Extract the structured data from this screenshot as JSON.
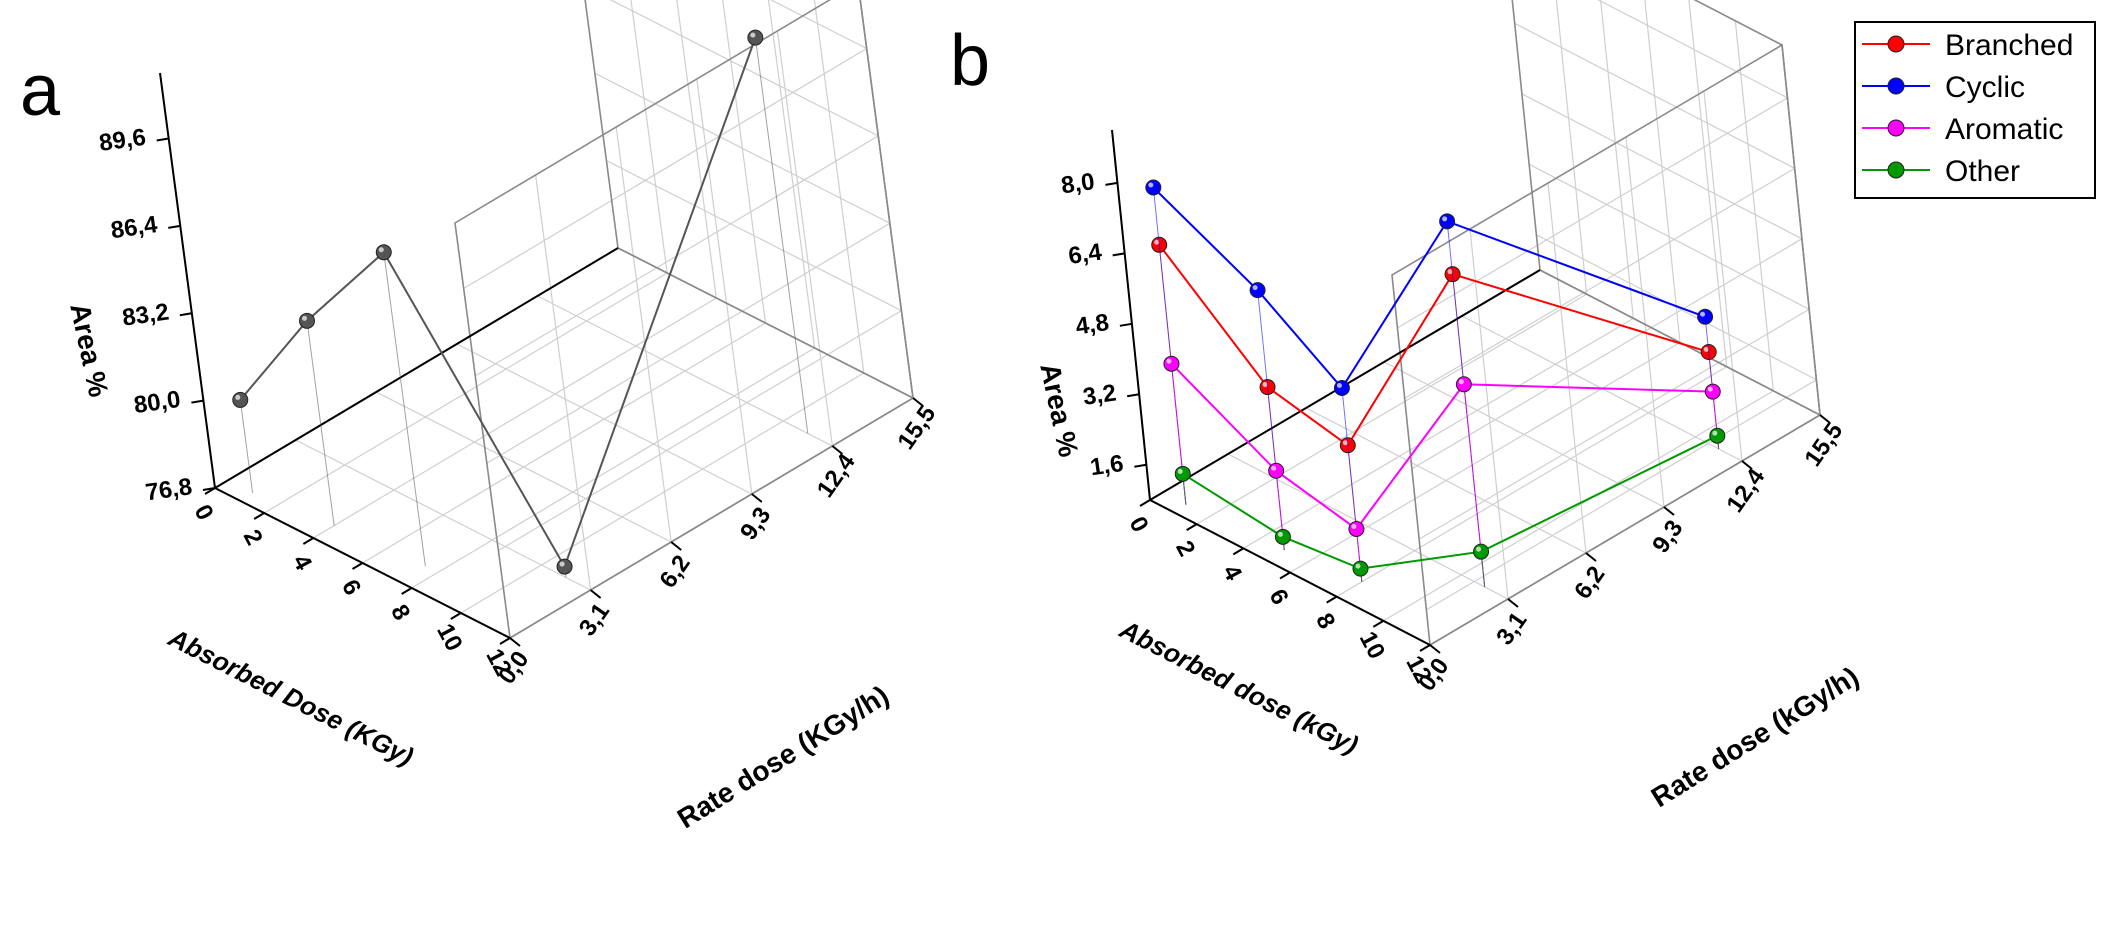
{
  "chart_data": [
    {
      "panel_label": "a",
      "type": "line3d",
      "zlabel": "Area %",
      "xlabel": "Absorbed Dose (KGy)",
      "ylabel": "Rate dose (KGy/h)",
      "x_ticks": [
        "0",
        "2",
        "4",
        "6",
        "8",
        "10",
        "12"
      ],
      "y_ticks": [
        "0,0",
        "3,1",
        "6,2",
        "9,3",
        "12,4",
        "15,5"
      ],
      "z_ticks": [
        "76,8",
        "80,0",
        "83,2",
        "86,4",
        "89,6"
      ],
      "xlim": [
        0,
        12
      ],
      "ylim": [
        0,
        15.5
      ],
      "zlim": [
        76.8,
        92.0
      ],
      "series": [
        {
          "name": "Area",
          "color": "#555555",
          "points": [
            {
              "x": 1.0,
              "y": 0.5,
              "z": 80.2
            },
            {
              "x": 4.0,
              "y": 0.8,
              "z": 84.3
            },
            {
              "x": 7.5,
              "y": 1.0,
              "z": 88.3
            },
            {
              "x": 11.0,
              "y": 3.1,
              "z": 77.2
            },
            {
              "x": 11.0,
              "y": 12.4,
              "z": 91.3
            }
          ]
        }
      ]
    },
    {
      "panel_label": "b",
      "type": "line3d",
      "zlabel": "Area %",
      "xlabel": "Absorbed dose (kGy)",
      "ylabel": "Rate dose (kGy/h)",
      "x_ticks": [
        "0",
        "2",
        "4",
        "6",
        "8",
        "10",
        "12"
      ],
      "y_ticks": [
        "0,0",
        "3,1",
        "6,2",
        "9,3",
        "12,4",
        "15,5"
      ],
      "z_ticks": [
        "1,6",
        "3,2",
        "4,8",
        "6,4",
        "8,0"
      ],
      "xlim": [
        0,
        12
      ],
      "ylim": [
        0,
        15.5
      ],
      "zlim": [
        0.8,
        9.2
      ],
      "legend": {
        "position": "top-right"
      },
      "series": [
        {
          "name": "Branched",
          "color": "#ff0000",
          "points": [
            {
              "x": 1.0,
              "y": 0.5,
              "z": 6.7
            },
            {
              "x": 5.0,
              "y": 0.7,
              "z": 4.5
            },
            {
              "x": 8.0,
              "y": 1.0,
              "z": 3.9
            },
            {
              "x": 11.0,
              "y": 3.1,
              "z": 7.9
            },
            {
              "x": 11.0,
              "y": 12.4,
              "z": 3.0
            }
          ]
        },
        {
          "name": "Cyclic",
          "color": "#0000ff",
          "points": [
            {
              "x": 1.0,
              "y": 0.5,
              "z": 8.0
            },
            {
              "x": 5.0,
              "y": 0.7,
              "z": 6.7
            },
            {
              "x": 8.0,
              "y": 1.0,
              "z": 5.2
            },
            {
              "x": 11.0,
              "y": 3.1,
              "z": 9.1
            },
            {
              "x": 11.0,
              "y": 12.4,
              "z": 3.8
            }
          ]
        },
        {
          "name": "Aromatic",
          "color": "#ff00ff",
          "points": [
            {
              "x": 1.0,
              "y": 0.5,
              "z": 4.0
            },
            {
              "x": 5.0,
              "y": 0.7,
              "z": 2.6
            },
            {
              "x": 8.0,
              "y": 1.0,
              "z": 2.0
            },
            {
              "x": 11.0,
              "y": 3.1,
              "z": 5.4
            },
            {
              "x": 11.0,
              "y": 12.4,
              "z": 2.1
            }
          ]
        },
        {
          "name": "Other",
          "color": "#009900",
          "points": [
            {
              "x": 1.0,
              "y": 0.5,
              "z": 1.5
            },
            {
              "x": 5.0,
              "y": 0.7,
              "z": 1.1
            },
            {
              "x": 8.0,
              "y": 1.0,
              "z": 1.1
            },
            {
              "x": 11.0,
              "y": 3.1,
              "z": 1.6
            },
            {
              "x": 11.0,
              "y": 12.4,
              "z": 1.1
            }
          ]
        }
      ]
    }
  ]
}
